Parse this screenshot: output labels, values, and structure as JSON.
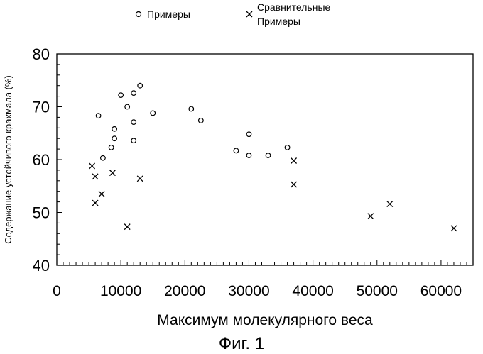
{
  "chart_data": {
    "type": "scatter",
    "title": "",
    "caption": "Фиг. 1",
    "xlabel": "Максимум молекулярного веса",
    "ylabel": "Содержание устойчивого крахмала (%)",
    "xlim": [
      0,
      65000
    ],
    "ylim": [
      40,
      80
    ],
    "x_ticks": [
      0,
      10000,
      20000,
      30000,
      40000,
      50000,
      60000
    ],
    "y_ticks": [
      40,
      50,
      60,
      70,
      80
    ],
    "x_tick_labels": [
      "0",
      "10000",
      "20000",
      "30000",
      "40000",
      "50000",
      "60000"
    ],
    "y_tick_labels": [
      "40",
      "50",
      "60",
      "70",
      "80"
    ],
    "grid": false,
    "legend_position": "top",
    "legend": [
      {
        "label": "Примеры",
        "marker": "circle"
      },
      {
        "label_lines": [
          "Сравнительные",
          "Примеры"
        ],
        "marker": "cross"
      }
    ],
    "series": [
      {
        "marker": "circle",
        "color": "#000000",
        "points": [
          {
            "x": 6500,
            "y": 68.3
          },
          {
            "x": 7200,
            "y": 60.3
          },
          {
            "x": 8500,
            "y": 62.3
          },
          {
            "x": 9000,
            "y": 64.0
          },
          {
            "x": 9000,
            "y": 65.8
          },
          {
            "x": 10000,
            "y": 72.2
          },
          {
            "x": 11000,
            "y": 70.0
          },
          {
            "x": 12000,
            "y": 72.6
          },
          {
            "x": 12000,
            "y": 67.1
          },
          {
            "x": 12000,
            "y": 63.6
          },
          {
            "x": 13000,
            "y": 74.0
          },
          {
            "x": 15000,
            "y": 68.8
          },
          {
            "x": 21000,
            "y": 69.6
          },
          {
            "x": 22500,
            "y": 67.4
          },
          {
            "x": 28000,
            "y": 61.7
          },
          {
            "x": 30000,
            "y": 64.8
          },
          {
            "x": 30000,
            "y": 60.8
          },
          {
            "x": 33000,
            "y": 60.8
          },
          {
            "x": 36000,
            "y": 62.3
          }
        ]
      },
      {
        "marker": "cross",
        "color": "#000000",
        "points": [
          {
            "x": 5500,
            "y": 58.8
          },
          {
            "x": 6000,
            "y": 56.8
          },
          {
            "x": 6000,
            "y": 51.8
          },
          {
            "x": 7000,
            "y": 53.5
          },
          {
            "x": 8700,
            "y": 57.5
          },
          {
            "x": 11000,
            "y": 47.3
          },
          {
            "x": 13000,
            "y": 56.4
          },
          {
            "x": 37000,
            "y": 59.8
          },
          {
            "x": 37000,
            "y": 55.3
          },
          {
            "x": 49000,
            "y": 49.3
          },
          {
            "x": 52000,
            "y": 51.6
          },
          {
            "x": 62000,
            "y": 47.0
          }
        ]
      }
    ]
  }
}
